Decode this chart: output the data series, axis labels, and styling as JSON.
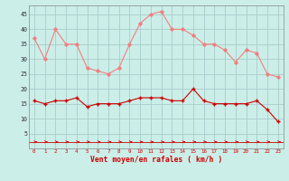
{
  "x": [
    0,
    1,
    2,
    3,
    4,
    5,
    6,
    7,
    8,
    9,
    10,
    11,
    12,
    13,
    14,
    15,
    16,
    17,
    18,
    19,
    20,
    21,
    22,
    23
  ],
  "rafales": [
    37,
    30,
    40,
    35,
    35,
    27,
    26,
    25,
    27,
    35,
    42,
    45,
    46,
    40,
    40,
    38,
    35,
    35,
    33,
    29,
    33,
    32,
    25,
    24
  ],
  "moyen": [
    16,
    15,
    16,
    16,
    17,
    14,
    15,
    15,
    15,
    16,
    17,
    17,
    17,
    16,
    16,
    20,
    16,
    15,
    15,
    15,
    15,
    16,
    13,
    9
  ],
  "color_rafales": "#f08080",
  "color_moyen": "#cc0000",
  "color_dir": "#cc0000",
  "bg_color": "#cceee8",
  "grid_color": "#aacccc",
  "xlabel": "Vent moyen/en rafales ( km/h )",
  "xlabel_color": "#cc0000",
  "yticks": [
    5,
    10,
    15,
    20,
    25,
    30,
    35,
    40,
    45
  ],
  "ylim": [
    0,
    48
  ],
  "xlim": [
    -0.5,
    23.5
  ]
}
